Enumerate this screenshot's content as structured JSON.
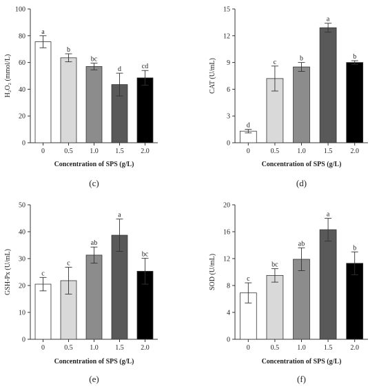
{
  "chart_data": [
    {
      "type": "bar",
      "panel_label": "(c)",
      "categories": [
        "0",
        "0.5",
        "1.0",
        "1.5",
        "2.0"
      ],
      "values": [
        75.5,
        63.5,
        57.0,
        43.5,
        48.5
      ],
      "errors": [
        4.5,
        3.0,
        2.5,
        8.5,
        5.5
      ],
      "significance": [
        "a",
        "b",
        "bc",
        "d",
        "cd"
      ],
      "colors": [
        "#ffffff",
        "#d9d9d9",
        "#8c8c8c",
        "#595959",
        "#000000"
      ],
      "xlabel": "Concentration of SPS (g/L)",
      "ylabel": "H₂O₂ (mmol/L)",
      "ylim": [
        0,
        100
      ],
      "yticks": [
        0,
        20,
        40,
        60,
        80,
        100
      ]
    },
    {
      "type": "bar",
      "panel_label": "(d)",
      "categories": [
        "0",
        "0.5",
        "1.0",
        "1.5",
        "2.0"
      ],
      "values": [
        1.3,
        7.2,
        8.5,
        12.9,
        9.0
      ],
      "errors": [
        0.2,
        1.4,
        0.5,
        0.5,
        0.2
      ],
      "significance": [
        "d",
        "c",
        "b",
        "a",
        "b"
      ],
      "colors": [
        "#ffffff",
        "#d9d9d9",
        "#8c8c8c",
        "#595959",
        "#000000"
      ],
      "xlabel": "Concentration of SPS (g/L)",
      "ylabel": "CAT (U/mL)",
      "ylim": [
        0,
        15
      ],
      "yticks": [
        0,
        3,
        6,
        9,
        12,
        15
      ]
    },
    {
      "type": "bar",
      "panel_label": "(e)",
      "categories": [
        "0",
        "0.5",
        "1.0",
        "1.5",
        "2.0"
      ],
      "values": [
        20.5,
        21.8,
        31.3,
        38.7,
        25.3
      ],
      "errors": [
        2.5,
        5.0,
        3.0,
        6.0,
        4.8
      ],
      "significance": [
        "c",
        "c",
        "ab",
        "a",
        "bc"
      ],
      "colors": [
        "#ffffff",
        "#d9d9d9",
        "#8c8c8c",
        "#595959",
        "#000000"
      ],
      "xlabel": "Concentration of SPS (g/L)",
      "ylabel": "GSH-Px (U/mL)",
      "ylim": [
        0,
        50
      ],
      "yticks": [
        0,
        10,
        20,
        30,
        40,
        50
      ]
    },
    {
      "type": "bar",
      "panel_label": "(f)",
      "categories": [
        "0",
        "0.5",
        "1.0",
        "1.5",
        "2.0"
      ],
      "values": [
        6.9,
        9.5,
        11.9,
        16.3,
        11.3
      ],
      "errors": [
        1.5,
        1.0,
        1.7,
        1.7,
        1.7
      ],
      "significance": [
        "c",
        "bc",
        "ab",
        "a",
        "b"
      ],
      "colors": [
        "#ffffff",
        "#d9d9d9",
        "#8c8c8c",
        "#595959",
        "#000000"
      ],
      "xlabel": "Concentration of SPS (g/L)",
      "ylabel": "SOD (U/mL)",
      "ylim": [
        0,
        20
      ],
      "yticks": [
        0,
        4,
        8,
        12,
        16,
        20
      ]
    }
  ]
}
